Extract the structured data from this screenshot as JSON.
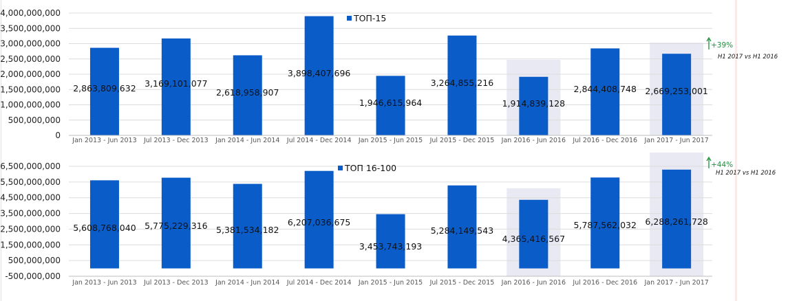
{
  "colors": {
    "bar": "#0a5cc8",
    "highlight": "#e9e9f3",
    "grid": "#dcdcdc",
    "annotation": "#1e8f3c"
  },
  "chart_data": [
    {
      "type": "bar",
      "categories": [
        "Jan 2013 - Jun 2013",
        "Jul 2013 - Dec 2013",
        "Jan 2014 - Jun 2014",
        "Jul 2014 - Dec 2014",
        "Jan 2015 - Jun 2015",
        "Jul 2015 - Dec 2015",
        "Jan 2016 - Jun 2016",
        "Jul 2016 - Dec 2016",
        "Jan 2017 - Jun 2017"
      ],
      "series": [
        {
          "name": "ТОП-15",
          "values": [
            2863809632,
            3169101077,
            2618958907,
            3898407696,
            1946615964,
            3264855216,
            1914839128,
            2844408748,
            2669253001
          ]
        }
      ],
      "data_labels": [
        "2,863,809,632",
        "3,169,101,077",
        "2,618,958,907",
        "3,898,407,696",
        "1,946,615,964",
        "3,264,855,216",
        "1,914,839,128",
        "2,844,408,748",
        "2,669,253,001"
      ],
      "yticks": [
        "4,000,000,000",
        "3,500,000,000",
        "3,000,000,000",
        "2,500,000,000",
        "2,000,000,000",
        "1,500,000,000",
        "1,000,000,000",
        "500,000,000",
        "0"
      ],
      "ylim": [
        0,
        4000000000
      ],
      "highlighted_categories": [
        "Jan 2016 - Jun 2016",
        "Jan 2017 - Jun 2017"
      ],
      "legend_position": "top-center",
      "annotation": {
        "text": "+39%",
        "caption": "H1 2017 vs H1 2016"
      },
      "grid": true
    },
    {
      "type": "bar",
      "categories": [
        "Jan 2013 - Jun 2013",
        "Jul 2013 - Dec 2013",
        "Jan 2014 - Jun 2014",
        "Jul 2014 - Dec 2014",
        "Jan 2015 - Jun 2015",
        "Jul 2015 - Dec 2015",
        "Jan 2016 - Jun 2016",
        "Jul 2016 - Dec 2016",
        "Jan 2017 - Jun 2017"
      ],
      "series": [
        {
          "name": "ТОП 16-100",
          "values": [
            5608768040,
            5775229316,
            5381534182,
            6207036675,
            3453743193,
            5284149543,
            4365416567,
            5787562032,
            6288261728
          ]
        }
      ],
      "data_labels": [
        "5,608,768,040",
        "5,775,229,316",
        "5,381,534,182",
        "6,207,036,675",
        "3,453,743,193",
        "5,284,149,543",
        "4,365,416,567",
        "5,787,562,032",
        "6,288,261,728"
      ],
      "yticks": [
        "6,500,000,000",
        "5,500,000,000",
        "4,500,000,000",
        "3,500,000,000",
        "2,500,000,000",
        "1,500,000,000",
        "500,000,000",
        "-500,000,000"
      ],
      "ylim": [
        -500000000,
        6500000000
      ],
      "highlighted_categories": [
        "Jan 2016 - Jun 2016",
        "Jan 2017 - Jun 2017"
      ],
      "legend_position": "top-center",
      "annotation": {
        "text": "+44%",
        "caption": "H1 2017 vs H1 2016"
      },
      "grid": true
    }
  ]
}
